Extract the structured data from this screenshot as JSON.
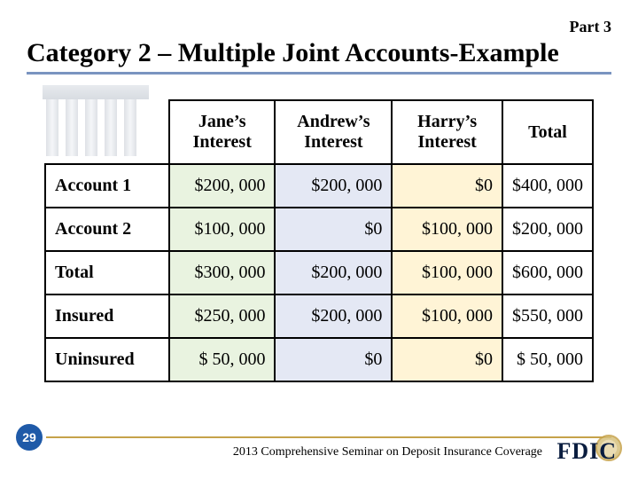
{
  "part_label": "Part  3",
  "title": "Category 2 – Multiple Joint Accounts-Example",
  "page_number": "29",
  "footer_text": "2013 Comprehensive Seminar on Deposit Insurance Coverage",
  "fdic_label": "FDIC",
  "table": {
    "columns": [
      {
        "key": "jane",
        "label": "Jane’s Interest",
        "bg": "#e9f3e0"
      },
      {
        "key": "andrew",
        "label": "Andrew’s Interest",
        "bg": "#e4e8f4"
      },
      {
        "key": "harry",
        "label": "Harry’s Interest",
        "bg": "#fff4d6"
      },
      {
        "key": "total",
        "label": "Total",
        "bg": "#ffffff"
      }
    ],
    "rows": [
      {
        "label": "Account 1",
        "cells": [
          "$200, 000",
          "$200, 000",
          "$0",
          "$400, 000"
        ]
      },
      {
        "label": "Account 2",
        "cells": [
          "$100, 000",
          "$0",
          "$100, 000",
          "$200, 000"
        ]
      },
      {
        "label": "Total",
        "cells": [
          "$300, 000",
          "$200, 000",
          "$100, 000",
          "$600, 000"
        ]
      },
      {
        "label": "Insured",
        "cells": [
          "$250, 000",
          "$200, 000",
          "$100, 000",
          "$550, 000"
        ]
      },
      {
        "label": "Uninsured",
        "cells": [
          "$  50, 000",
          "$0",
          "$0",
          "$  50, 000"
        ]
      }
    ]
  },
  "colors": {
    "title_underline": "#7a94c0",
    "footer_rule": "#c6a24a",
    "page_badge_bg": "#1f5aa8",
    "fdic_text": "#0a1d3f"
  }
}
